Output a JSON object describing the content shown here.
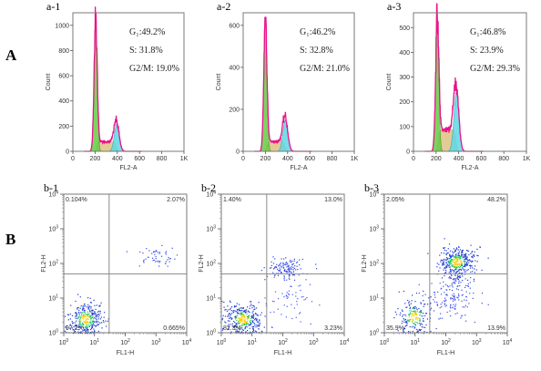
{
  "row_labels": [
    "A",
    "B"
  ],
  "chart_data": [
    {
      "id": "a-1",
      "type": "area",
      "panel_label": "a-1",
      "xlabel": "FL2-A",
      "ylabel": "Count",
      "xlim": [
        0,
        1000
      ],
      "ylim": [
        0,
        1100
      ],
      "x_ticks": [
        0,
        200,
        400,
        600,
        800,
        1000
      ],
      "x_tick_labels": [
        "0",
        "200",
        "400",
        "600",
        "800",
        "1K"
      ],
      "y_ticks": [
        0,
        200,
        400,
        600,
        800,
        1000
      ],
      "y_tick_labels": [
        "0",
        "200",
        "400",
        "600",
        "800",
        "1000"
      ],
      "peaks": {
        "g1": [
          205,
          1040
        ],
        "g2": [
          395,
          215
        ]
      },
      "annotations": [
        "G₁:49.2%",
        "S:  31.8%",
        "G2/M: 19.0%"
      ]
    },
    {
      "id": "a-2",
      "type": "area",
      "panel_label": "a-2",
      "xlabel": "FL2-A",
      "ylabel": "Count",
      "xlim": [
        0,
        1000
      ],
      "ylim": [
        0,
        660
      ],
      "x_ticks": [
        0,
        200,
        400,
        600,
        800,
        1000
      ],
      "x_tick_labels": [
        "0",
        "200",
        "400",
        "600",
        "800",
        "1K"
      ],
      "y_ticks": [
        0,
        200,
        400,
        600
      ],
      "y_tick_labels": [
        "0",
        "200",
        "400",
        "600"
      ],
      "peaks": {
        "g1": [
          200,
          640
        ],
        "g2": [
          380,
          150
        ]
      },
      "annotations": [
        "G₁:46.2%",
        "S:  32.8%",
        "G2/M: 21.0%"
      ]
    },
    {
      "id": "a-3",
      "type": "area",
      "panel_label": "a-3",
      "xlabel": "FL2-A",
      "ylabel": "Count",
      "xlim": [
        0,
        1000
      ],
      "ylim": [
        0,
        560
      ],
      "x_ticks": [
        0,
        200,
        400,
        600,
        800,
        1000
      ],
      "x_tick_labels": [
        "0",
        "200",
        "400",
        "600",
        "800",
        "1K"
      ],
      "y_ticks": [
        0,
        100,
        200,
        300,
        400,
        500
      ],
      "y_tick_labels": [
        "0",
        "100",
        "200",
        "300",
        "400",
        "500"
      ],
      "peaks": {
        "g1": [
          210,
          540
        ],
        "g2": [
          380,
          240
        ]
      },
      "annotations": [
        "G₁:46.8%",
        "S:  23.9%",
        "G2/M: 29.3%"
      ]
    },
    {
      "id": "b-1",
      "type": "scatter",
      "panel_label": "b-1",
      "xlabel": "FL1-H",
      "ylabel": "FL2-H",
      "log": true,
      "xlim": [
        1,
        10000
      ],
      "ylim": [
        1,
        10000
      ],
      "quadrant_gate": [
        30,
        50
      ],
      "quadrants": {
        "UL": "0.104%",
        "UR": "2.07%",
        "LL": "97.2%",
        "LR": "0.665%"
      },
      "clusters": [
        {
          "x": 5,
          "y": 2.5,
          "sx": 0.28,
          "sy": 0.26,
          "n": 320,
          "color": "#1e3cd2"
        },
        {
          "x": 900,
          "y": 160,
          "sx": 0.35,
          "sy": 0.14,
          "n": 50,
          "color": "#3a4ee6"
        }
      ]
    },
    {
      "id": "b-2",
      "type": "scatter",
      "panel_label": "b-2",
      "xlabel": "FL1-H",
      "ylabel": "FL2-H",
      "log": true,
      "xlim": [
        1,
        10000
      ],
      "ylim": [
        1,
        10000
      ],
      "quadrant_gate": [
        30,
        50
      ],
      "quadrants": {
        "UL": "1.40%",
        "UR": "13.0%",
        "LL": "82.3%",
        "LR": "3.23%"
      },
      "clusters": [
        {
          "x": 5,
          "y": 2.5,
          "sx": 0.3,
          "sy": 0.24,
          "n": 330,
          "color": "#1e3cd2"
        },
        {
          "x": 120,
          "y": 75,
          "sx": 0.3,
          "sy": 0.16,
          "n": 120,
          "color": "#2e46e0"
        },
        {
          "x": 200,
          "y": 10,
          "sx": 0.35,
          "sy": 0.35,
          "n": 60,
          "color": "#4a5af0"
        }
      ]
    },
    {
      "id": "b-3",
      "type": "scatter",
      "panel_label": "b-3",
      "xlabel": "FL1-H",
      "ylabel": "FL2-H",
      "log": true,
      "xlim": [
        1,
        10000
      ],
      "ylim": [
        1,
        10000
      ],
      "quadrant_gate": [
        30,
        50
      ],
      "quadrants": {
        "UL": "2.05%",
        "UR": "48.2%",
        "LL": "35.9%",
        "LR": "13.9%"
      },
      "clusters": [
        {
          "x": 220,
          "y": 110,
          "sx": 0.3,
          "sy": 0.22,
          "n": 380,
          "color": "#1e3cd2"
        },
        {
          "x": 9,
          "y": 3,
          "sx": 0.3,
          "sy": 0.26,
          "n": 200,
          "color": "#1e3cd2"
        },
        {
          "x": 150,
          "y": 12,
          "sx": 0.4,
          "sy": 0.38,
          "n": 150,
          "color": "#3a4ee6"
        }
      ]
    }
  ],
  "colors": {
    "envelope": "#e8138a",
    "g1_fill": "#66cc44",
    "s_fill": "#e0c68a",
    "g2_fill": "#5fd8e6",
    "sum_line": "#b84cc8",
    "quad_line": "#7f7f7f",
    "frame": "#7a7a7a"
  }
}
